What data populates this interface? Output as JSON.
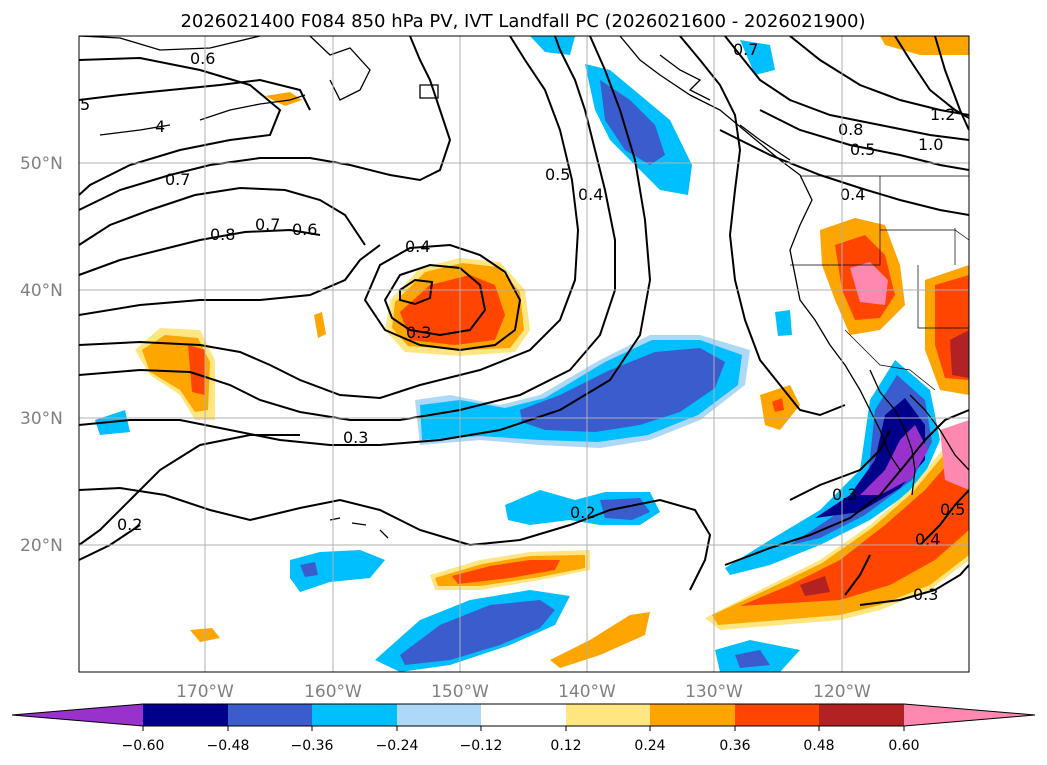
{
  "figure": {
    "title": "2026021400 F084 850 hPa PV, IVT Landfall PC (2026021600 - 2026021900)"
  },
  "map": {
    "lat_labels": [
      "50°N",
      "40°N",
      "30°N",
      "20°N"
    ],
    "lon_labels": [
      "170°W",
      "160°W",
      "150°W",
      "140°W",
      "130°W",
      "120°W"
    ],
    "contour_labels": [
      "0.6",
      "5",
      "4",
      "0.7",
      "0.8",
      "0.7",
      "0.6",
      "0.4",
      "0.3",
      "0.5",
      "0.4",
      "0.3",
      "0.2",
      "0.2",
      "0.7",
      "0.8",
      "0.5",
      "0.4",
      "1.2",
      "1.0",
      "0.3",
      "0.4",
      "0.5",
      "0.3"
    ]
  },
  "colorbar": {
    "tick_labels": [
      "−0.60",
      "−0.48",
      "−0.36",
      "−0.24",
      "−0.12",
      "0.12",
      "0.24",
      "0.36",
      "0.48",
      "0.60"
    ],
    "colors": [
      "#9932cc",
      "#00008b",
      "#3a5ccc",
      "#00bfff",
      "#add8f7",
      "#ffffff",
      "#ffe680",
      "#ffa500",
      "#ff4500",
      "#b22222",
      "#ff88b0"
    ]
  }
}
